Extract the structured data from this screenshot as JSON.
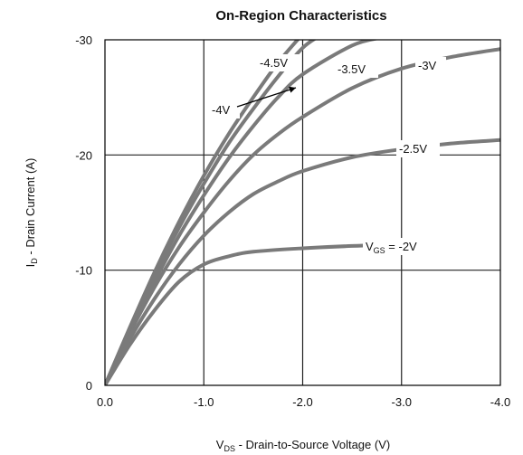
{
  "chart_data": {
    "type": "line",
    "title": "On-Region Characteristics",
    "xlabel": {
      "main": "V",
      "sub": "DS",
      "rest": " - Drain-to-Source Voltage (V)"
    },
    "ylabel": {
      "main": "I",
      "sub": "D",
      "rest": " - Drain Current (A)"
    },
    "xlim": [
      0,
      -4.0
    ],
    "ylim": [
      0,
      -30
    ],
    "x_ticks": [
      {
        "value": 0,
        "label": "0.0"
      },
      {
        "value": -1,
        "label": "-1.0"
      },
      {
        "value": -2,
        "label": "-2.0"
      },
      {
        "value": -3,
        "label": "-3.0"
      },
      {
        "value": -4,
        "label": "-4.0"
      }
    ],
    "y_ticks": [
      {
        "value": 0,
        "label": "0"
      },
      {
        "value": -10,
        "label": "-10"
      },
      {
        "value": -20,
        "label": "-20"
      },
      {
        "value": -30,
        "label": "-30"
      }
    ],
    "grid": true,
    "series": [
      {
        "name": "-2V",
        "values": [
          [
            0,
            0
          ],
          [
            -0.25,
            -3.5
          ],
          [
            -0.5,
            -6.5
          ],
          [
            -0.75,
            -9
          ],
          [
            -1.0,
            -10.5
          ],
          [
            -1.25,
            -11.2
          ],
          [
            -1.5,
            -11.6
          ],
          [
            -2.0,
            -11.9
          ],
          [
            -2.5,
            -12.1
          ],
          [
            -3.0,
            -12.2
          ],
          [
            -3.3,
            -12.2
          ]
        ]
      },
      {
        "name": "-2.5V",
        "values": [
          [
            0,
            0
          ],
          [
            -0.25,
            -4
          ],
          [
            -0.5,
            -7.5
          ],
          [
            -0.75,
            -10.5
          ],
          [
            -1.0,
            -13
          ],
          [
            -1.25,
            -15
          ],
          [
            -1.5,
            -16.6
          ],
          [
            -1.75,
            -17.7
          ],
          [
            -2.0,
            -18.6
          ],
          [
            -2.5,
            -19.8
          ],
          [
            -3.0,
            -20.5
          ],
          [
            -3.5,
            -21
          ],
          [
            -4.0,
            -21.3
          ]
        ]
      },
      {
        "name": "-3V",
        "values": [
          [
            0,
            0
          ],
          [
            -0.25,
            -4.5
          ],
          [
            -0.5,
            -8.5
          ],
          [
            -0.75,
            -12
          ],
          [
            -1.0,
            -15
          ],
          [
            -1.25,
            -17.7
          ],
          [
            -1.5,
            -20
          ],
          [
            -1.75,
            -21.8
          ],
          [
            -2.0,
            -23.3
          ],
          [
            -2.5,
            -25.8
          ],
          [
            -3.0,
            -27.5
          ],
          [
            -3.5,
            -28.5
          ],
          [
            -4.0,
            -29.2
          ]
        ]
      },
      {
        "name": "-3.5V",
        "values": [
          [
            0,
            0
          ],
          [
            -0.25,
            -4.7
          ],
          [
            -0.5,
            -9
          ],
          [
            -0.75,
            -13
          ],
          [
            -1.0,
            -16.5
          ],
          [
            -1.25,
            -19.7
          ],
          [
            -1.5,
            -22.5
          ],
          [
            -1.75,
            -25
          ],
          [
            -2.0,
            -27
          ],
          [
            -2.5,
            -29.5
          ],
          [
            -2.8,
            -30.2
          ]
        ]
      },
      {
        "name": "-4V",
        "values": [
          [
            0,
            0
          ],
          [
            -0.25,
            -4.9
          ],
          [
            -0.5,
            -9.5
          ],
          [
            -0.75,
            -13.7
          ],
          [
            -1.0,
            -17.5
          ],
          [
            -1.25,
            -21
          ],
          [
            -1.5,
            -24
          ],
          [
            -1.75,
            -26.8
          ],
          [
            -2.0,
            -29.3
          ],
          [
            -2.2,
            -30.5
          ]
        ]
      },
      {
        "name": "-4.5V",
        "values": [
          [
            0,
            0
          ],
          [
            -0.25,
            -5
          ],
          [
            -0.5,
            -9.8
          ],
          [
            -0.75,
            -14.2
          ],
          [
            -1.0,
            -18.2
          ],
          [
            -1.25,
            -21.8
          ],
          [
            -1.5,
            -25
          ],
          [
            -1.75,
            -28
          ],
          [
            -2.0,
            -30.5
          ]
        ]
      }
    ],
    "annotations": [
      {
        "key": "vgs_2",
        "main": "V",
        "sub": "GS",
        "rest": " = -2V",
        "series": "-2V"
      },
      {
        "key": "v25",
        "text": "-2.5V",
        "series": "-2.5V"
      },
      {
        "key": "v3",
        "text": "-3V",
        "series": "-3V"
      },
      {
        "key": "v35",
        "text": "-3.5V",
        "series": "-3.5V"
      },
      {
        "key": "v4",
        "text": "-4V",
        "series": "-4V",
        "arrow": true
      },
      {
        "key": "v45",
        "text": "-4.5V",
        "series": "-4.5V"
      }
    ],
    "colors": {
      "curve": "#7a7a7a",
      "grid": "#222222",
      "axis": "#000000"
    }
  }
}
